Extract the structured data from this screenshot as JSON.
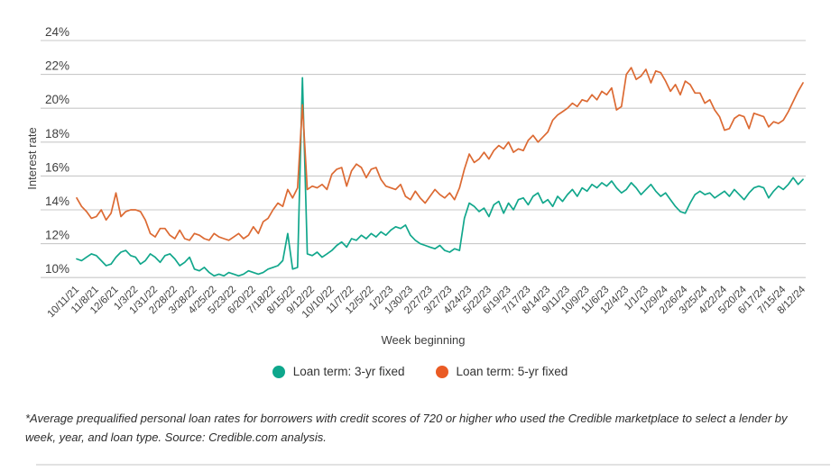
{
  "chart_data": {
    "type": "line",
    "title": "",
    "ylabel": "Interest rate",
    "xlabel": "Week beginning",
    "ylim": [
      10,
      24
    ],
    "ytick_step": 2,
    "ytick_labels": [
      "24%",
      "22%",
      "20%",
      "18%",
      "16%",
      "14%",
      "12%",
      "10%"
    ],
    "grid": "horizontal",
    "legend_position": "bottom",
    "x_tick_labels": [
      "10/11/21",
      "11/8/21",
      "12/6/21",
      "1/3/22",
      "1/31/22",
      "2/28/22",
      "3/28/22",
      "4/25/22",
      "5/23/22",
      "6/20/22",
      "7/18/22",
      "8/15/22",
      "9/12/22",
      "10/10/22",
      "11/7/22",
      "12/5/22",
      "1/2/23",
      "1/30/23",
      "2/27/23",
      "3/27/23",
      "4/24/23",
      "5/22/23",
      "6/19/23",
      "7/17/23",
      "8/14/23",
      "9/11/23",
      "10/9/23",
      "11/6/23",
      "12/4/23",
      "1/1/23",
      "1/29/24",
      "2/26/24",
      "3/25/24",
      "4/22/24",
      "5/20/24",
      "6/17/24",
      "7/15/24",
      "8/12/24"
    ],
    "x_tick_interval_weeks": 4,
    "series": [
      {
        "name": "Loan term: 3-yr fixed",
        "color": "#12A78C",
        "values": [
          11.1,
          11.0,
          11.2,
          11.4,
          11.3,
          11.0,
          10.7,
          10.8,
          11.2,
          11.5,
          11.6,
          11.3,
          11.2,
          10.8,
          11.0,
          11.4,
          11.2,
          10.9,
          11.3,
          11.4,
          11.1,
          10.7,
          10.9,
          11.2,
          10.5,
          10.4,
          10.6,
          10.3,
          10.1,
          10.2,
          10.1,
          10.3,
          10.2,
          10.1,
          10.2,
          10.4,
          10.3,
          10.2,
          10.3,
          10.5,
          10.6,
          10.7,
          11.0,
          12.6,
          10.5,
          10.6,
          21.8,
          11.4,
          11.3,
          11.5,
          11.2,
          11.4,
          11.6,
          11.9,
          12.1,
          11.8,
          12.3,
          12.2,
          12.5,
          12.3,
          12.6,
          12.4,
          12.7,
          12.5,
          12.8,
          13.0,
          12.9,
          13.1,
          12.5,
          12.2,
          12.0,
          11.9,
          11.8,
          11.7,
          11.9,
          11.6,
          11.5,
          11.7,
          11.6,
          13.5,
          14.4,
          14.2,
          13.9,
          14.1,
          13.6,
          14.3,
          14.5,
          13.8,
          14.4,
          14.0,
          14.6,
          14.7,
          14.3,
          14.8,
          15.0,
          14.4,
          14.6,
          14.2,
          14.8,
          14.5,
          14.9,
          15.2,
          14.8,
          15.3,
          15.1,
          15.5,
          15.3,
          15.6,
          15.4,
          15.7,
          15.3,
          15.0,
          15.2,
          15.6,
          15.3,
          14.9,
          15.2,
          15.5,
          15.1,
          14.8,
          15.0,
          14.6,
          14.2,
          13.9,
          13.8,
          14.4,
          14.9,
          15.1,
          14.9,
          15.0,
          14.7,
          14.9,
          15.1,
          14.8,
          15.2,
          14.9,
          14.6,
          15.0,
          15.3,
          15.4,
          15.3,
          14.7,
          15.1,
          15.4,
          15.2,
          15.5,
          15.9,
          15.5,
          15.8
        ]
      },
      {
        "name": "Loan term: 5-yr fixed",
        "color": "#DC6A33",
        "values": [
          14.7,
          14.2,
          13.9,
          13.5,
          13.6,
          14.0,
          13.4,
          13.8,
          15.0,
          13.6,
          13.9,
          14.0,
          14.0,
          13.9,
          13.4,
          12.6,
          12.4,
          12.9,
          12.9,
          12.5,
          12.3,
          12.8,
          12.3,
          12.2,
          12.6,
          12.5,
          12.3,
          12.2,
          12.6,
          12.4,
          12.3,
          12.2,
          12.4,
          12.6,
          12.3,
          12.5,
          13.0,
          12.6,
          13.3,
          13.5,
          14.0,
          14.4,
          14.2,
          15.2,
          14.7,
          15.3,
          20.2,
          15.2,
          15.4,
          15.3,
          15.5,
          15.2,
          16.1,
          16.4,
          16.5,
          15.4,
          16.3,
          16.7,
          16.5,
          15.9,
          16.4,
          16.5,
          15.8,
          15.4,
          15.3,
          15.2,
          15.5,
          14.8,
          14.6,
          15.1,
          14.7,
          14.4,
          14.8,
          15.2,
          14.9,
          14.7,
          15.0,
          14.6,
          15.3,
          16.4,
          17.3,
          16.8,
          17.0,
          17.4,
          17.0,
          17.5,
          17.8,
          17.6,
          18.0,
          17.4,
          17.6,
          17.5,
          18.1,
          18.4,
          18.0,
          18.3,
          18.6,
          19.3,
          19.6,
          19.8,
          20.0,
          20.3,
          20.1,
          20.5,
          20.4,
          20.8,
          20.5,
          21.0,
          20.8,
          21.2,
          19.9,
          20.1,
          22.0,
          22.4,
          21.7,
          21.9,
          22.3,
          21.5,
          22.2,
          22.1,
          21.6,
          21.0,
          21.4,
          20.8,
          21.6,
          21.4,
          20.9,
          20.9,
          20.3,
          20.5,
          19.9,
          19.5,
          18.7,
          18.8,
          19.4,
          19.6,
          19.5,
          18.8,
          19.7,
          19.6,
          19.5,
          18.9,
          19.2,
          19.1,
          19.3,
          19.8,
          20.4,
          21.0,
          21.5
        ]
      }
    ]
  },
  "legend": {
    "item1": "Loan term: 3-yr fixed",
    "item2": "Loan term: 5-yr fixed"
  },
  "footnote": "*Average prequalified personal loan rates for borrowers with credit scores of 720 or higher who used the Credible marketplace to select a lender by week, year, and loan type. Source: Credible.com analysis.",
  "colors": {
    "series_3yr": "#12A78C",
    "series_5yr": "#DC6A33",
    "legend_dot_3yr": "#0EA78C",
    "legend_dot_5yr": "#EA5B24",
    "gridline": "#c9c9c9",
    "axis_text": "#3e3e3e",
    "divider": "#e2e2e2"
  }
}
